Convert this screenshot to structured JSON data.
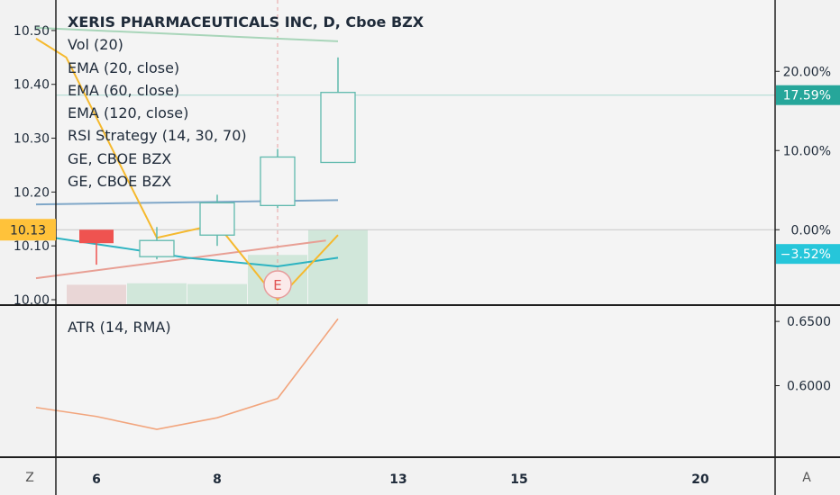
{
  "chart_data": [
    {
      "type": "candlestick",
      "title": "XERIS PHARMACEUTICALS INC, D, Cboe BZX",
      "legend": [
        "Vol (20)",
        "EMA (20, close)",
        "EMA (60, close)",
        "EMA (120, close)",
        "RSI Strategy (14, 30, 70)",
        "GE, CBOE BZX",
        "GE, CBOE BZX"
      ],
      "x_ticks": [
        "6",
        "8",
        "13",
        "15",
        "20"
      ],
      "y_ticks_left": [
        "10.50",
        "10.40",
        "10.30",
        "10.20",
        "10.10",
        "10.00"
      ],
      "y_ticks_right": [
        "20.00%",
        "10.00%",
        "0.00%"
      ],
      "ylim": [
        9.985,
        10.555
      ],
      "bars": [
        {
          "x": 0,
          "open": 10.13,
          "high": 10.125,
          "low": 10.065,
          "close": 10.105,
          "direction": "down"
        },
        {
          "x": 1,
          "open": 10.08,
          "high": 10.135,
          "low": 10.075,
          "close": 10.11,
          "direction": "up"
        },
        {
          "x": 2,
          "open": 10.12,
          "high": 10.195,
          "low": 10.1,
          "close": 10.18,
          "direction": "up"
        },
        {
          "x": 3,
          "open": 10.175,
          "high": 10.28,
          "low": 10.17,
          "close": 10.265,
          "direction": "up"
        },
        {
          "x": 4,
          "open": 10.255,
          "high": 10.45,
          "low": 10.255,
          "close": 10.385,
          "direction": "up"
        }
      ],
      "volume": [
        {
          "x": 0,
          "height": 0.26,
          "direction": "down"
        },
        {
          "x": 1,
          "height": 0.28,
          "direction": "up"
        },
        {
          "x": 2,
          "height": 0.27,
          "direction": "up"
        },
        {
          "x": 3,
          "height": 0.66,
          "direction": "up"
        },
        {
          "x": 4,
          "height": 1.0,
          "direction": "up"
        }
      ],
      "ema_green_line": {
        "x": [
          -1,
          4
        ],
        "y": [
          10.505,
          10.48
        ]
      },
      "ema_blue_line": {
        "x": [
          -1,
          4
        ],
        "y": [
          10.177,
          10.185
        ]
      },
      "ema_red_line": {
        "x": [
          -1,
          3.8
        ],
        "y": [
          10.04,
          10.11
        ]
      },
      "ema_teal_line": {
        "x": [
          -1,
          0.5,
          1.5,
          3,
          4
        ],
        "y": [
          10.12,
          10.095,
          10.078,
          10.062,
          10.078
        ]
      },
      "ge_yellow_line": {
        "x": [
          -1,
          -0.5,
          1,
          2,
          3,
          4
        ],
        "y": [
          10.485,
          10.45,
          10.115,
          10.14,
          10.0,
          10.12
        ]
      },
      "earnings_marker": {
        "x": 3,
        "label": "E"
      },
      "crosshair_x": 3,
      "price_line": 10.38,
      "current_price_label": "10.13",
      "percent_labels": [
        {
          "label": "17.59%",
          "y": 10.38,
          "color": "#26a69a"
        },
        {
          "label": "−3.52%",
          "y": 10.085,
          "color": "#26c6da"
        }
      ],
      "colors": {
        "up": "#5fb9ad",
        "down": "#ef5350",
        "ema_green": "#a8d5b9",
        "ema_blue": "#7fa7c8",
        "ema_red": "#e89f94",
        "ema_teal": "#2cb3c1",
        "ge_yellow": "#f5b92e"
      }
    },
    {
      "type": "line",
      "legend": "ATR (14, RMA)",
      "y_ticks_right": [
        "0.6500",
        "0.6000"
      ],
      "ylim": [
        0.545,
        0.662
      ],
      "x": [
        -1,
        0,
        1,
        2,
        3,
        4
      ],
      "y": [
        0.583,
        0.576,
        0.566,
        0.575,
        0.59,
        0.652
      ],
      "color": "#f2a57d"
    }
  ],
  "axis_buttons": {
    "left": "Z",
    "right": "A"
  }
}
